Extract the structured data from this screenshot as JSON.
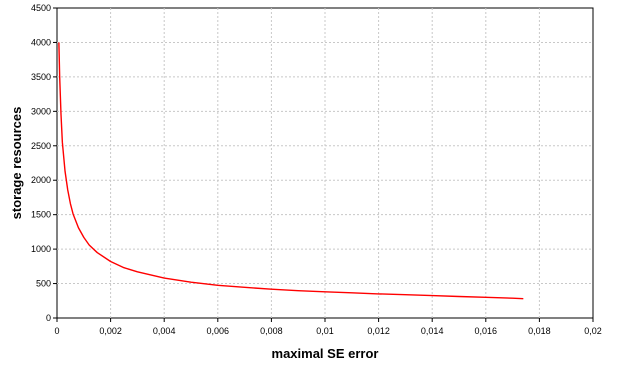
{
  "chart_data": {
    "type": "line",
    "title": "",
    "xlabel": "maximal SE error",
    "ylabel": "storage resources",
    "xlim": [
      0,
      0.02
    ],
    "ylim": [
      0,
      4500
    ],
    "x_ticks": [
      "0",
      "0,002",
      "0,004",
      "0,006",
      "0,008",
      "0,01",
      "0,012",
      "0,014",
      "0,016",
      "0,018",
      "0,02"
    ],
    "y_ticks": [
      "0",
      "500",
      "1000",
      "1500",
      "2000",
      "2500",
      "3000",
      "3500",
      "4000",
      "4500"
    ],
    "grid": true,
    "legend": "none",
    "series": [
      {
        "color": "#ff0000",
        "x": [
          7e-05,
          0.0001,
          0.00015,
          0.0002,
          0.0003,
          0.0004,
          0.0005,
          0.0006,
          0.0008,
          0.001,
          0.0012,
          0.0015,
          0.002,
          0.0025,
          0.003,
          0.004,
          0.005,
          0.006,
          0.007,
          0.008,
          0.009,
          0.01,
          0.011,
          0.012,
          0.013,
          0.014,
          0.015,
          0.016,
          0.017,
          0.0174
        ],
        "y": [
          4000,
          3500,
          2950,
          2550,
          2130,
          1860,
          1660,
          1510,
          1310,
          1170,
          1060,
          950,
          820,
          730,
          670,
          580,
          520,
          475,
          445,
          418,
          397,
          380,
          365,
          350,
          338,
          325,
          312,
          300,
          287,
          280
        ]
      }
    ]
  }
}
